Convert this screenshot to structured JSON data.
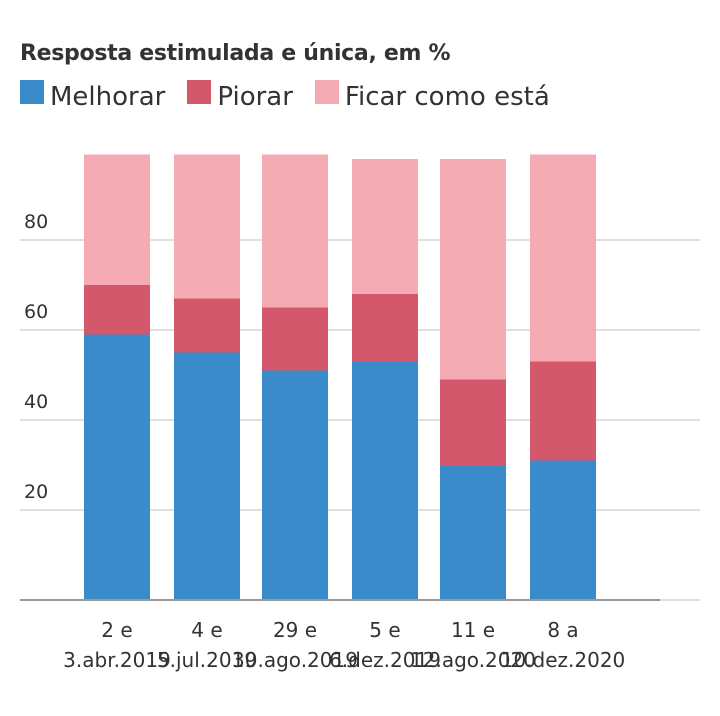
{
  "chart_data": {
    "type": "bar",
    "stacked": true,
    "title": "Resposta estimulada e única, em %",
    "xlabel": "",
    "ylabel": "",
    "ylim": [
      0,
      100
    ],
    "yticks": [
      20,
      40,
      60,
      80
    ],
    "ytick_labels": [
      "20",
      "40",
      "60",
      "80"
    ],
    "grid": true,
    "legend_position": "top-left",
    "categories": [
      [
        "2 e",
        "3.abr.2019"
      ],
      [
        "4 e",
        "5.jul.2019"
      ],
      [
        "29 e",
        "30.ago.2019"
      ],
      [
        "5 e",
        "6.dez.2019"
      ],
      [
        "11 e",
        "12.ago.2020"
      ],
      [
        "8 a",
        "10.dez.2020"
      ]
    ],
    "series": [
      {
        "name": "Melhorar",
        "color": "#3a8bca",
        "values": [
          59,
          55,
          51,
          53,
          30,
          31
        ]
      },
      {
        "name": "Piorar",
        "color": "#d4586c",
        "values": [
          11,
          12,
          14,
          15,
          19,
          22
        ]
      },
      {
        "name": "Ficar como está",
        "color": "#f4abb4",
        "values": [
          29,
          32,
          34,
          30,
          49,
          46
        ]
      }
    ]
  }
}
